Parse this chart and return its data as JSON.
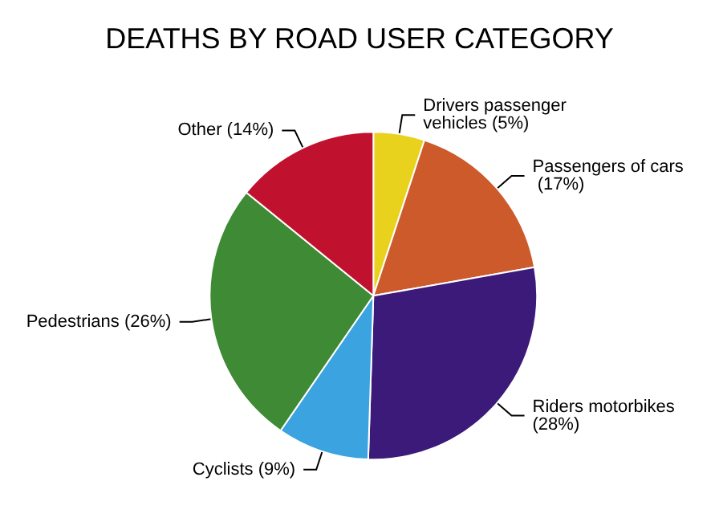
{
  "chart_data": {
    "type": "pie",
    "title": "DEATHS BY ROAD USER CATEGORY",
    "categories": [
      "Drivers passenger vehicles (5%)",
      "Passengers of cars (17%)",
      "Riders motorbikes (28%)",
      "Cyclists (9%)",
      "Pedestrians (26%)",
      "Other (14%)"
    ],
    "values": [
      5,
      17,
      28,
      9,
      26,
      14
    ],
    "colors": [
      "#e8d21d",
      "#cc5a2a",
      "#3b1a7a",
      "#3ba3e0",
      "#3f8a35",
      "#c0122e"
    ],
    "legend": false
  }
}
